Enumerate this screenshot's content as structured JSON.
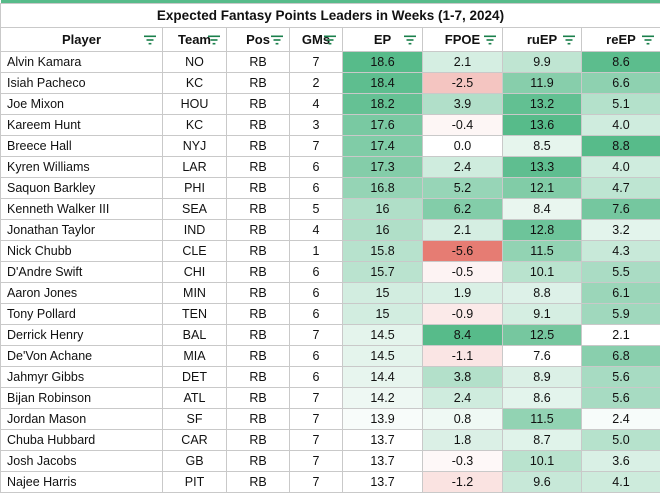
{
  "title": "Expected Fantasy Points Leaders in Weeks (1-7, 2024)",
  "columns": [
    "Player",
    "Team",
    "Pos",
    "GMs",
    "EP",
    "FPOE",
    "ruEP",
    "reEP"
  ],
  "rows": [
    [
      "Alvin Kamara",
      "NO",
      "RB",
      "7",
      "18.6",
      "2.1",
      "9.9",
      "8.6"
    ],
    [
      "Isiah Pacheco",
      "KC",
      "RB",
      "2",
      "18.4",
      "-2.5",
      "11.9",
      "6.6"
    ],
    [
      "Joe Mixon",
      "HOU",
      "RB",
      "4",
      "18.2",
      "3.9",
      "13.2",
      "5.1"
    ],
    [
      "Kareem Hunt",
      "KC",
      "RB",
      "3",
      "17.6",
      "-0.4",
      "13.6",
      "4.0"
    ],
    [
      "Breece Hall",
      "NYJ",
      "RB",
      "7",
      "17.4",
      "0.0",
      "8.5",
      "8.8"
    ],
    [
      "Kyren Williams",
      "LAR",
      "RB",
      "6",
      "17.3",
      "2.4",
      "13.3",
      "4.0"
    ],
    [
      "Saquon Barkley",
      "PHI",
      "RB",
      "6",
      "16.8",
      "5.2",
      "12.1",
      "4.7"
    ],
    [
      "Kenneth Walker III",
      "SEA",
      "RB",
      "5",
      "16",
      "6.2",
      "8.4",
      "7.6"
    ],
    [
      "Jonathan Taylor",
      "IND",
      "RB",
      "4",
      "16",
      "2.1",
      "12.8",
      "3.2"
    ],
    [
      "Nick Chubb",
      "CLE",
      "RB",
      "1",
      "15.8",
      "-5.6",
      "11.5",
      "4.3"
    ],
    [
      "D'Andre Swift",
      "CHI",
      "RB",
      "6",
      "15.7",
      "-0.5",
      "10.1",
      "5.5"
    ],
    [
      "Aaron Jones",
      "MIN",
      "RB",
      "6",
      "15",
      "1.9",
      "8.8",
      "6.1"
    ],
    [
      "Tony Pollard",
      "TEN",
      "RB",
      "6",
      "15",
      "-0.9",
      "9.1",
      "5.9"
    ],
    [
      "Derrick Henry",
      "BAL",
      "RB",
      "7",
      "14.5",
      "8.4",
      "12.5",
      "2.1"
    ],
    [
      "De'Von Achane",
      "MIA",
      "RB",
      "6",
      "14.5",
      "-1.1",
      "7.6",
      "6.8"
    ],
    [
      "Jahmyr Gibbs",
      "DET",
      "RB",
      "6",
      "14.4",
      "3.8",
      "8.9",
      "5.6"
    ],
    [
      "Bijan Robinson",
      "ATL",
      "RB",
      "7",
      "14.2",
      "2.4",
      "8.6",
      "5.6"
    ],
    [
      "Jordan Mason",
      "SF",
      "RB",
      "7",
      "13.9",
      "0.8",
      "11.5",
      "2.4"
    ],
    [
      "Chuba Hubbard",
      "CAR",
      "RB",
      "7",
      "13.7",
      "1.8",
      "8.7",
      "5.0"
    ],
    [
      "Josh Jacobs",
      "GB",
      "RB",
      "7",
      "13.7",
      "-0.3",
      "10.1",
      "3.6"
    ],
    [
      "Najee Harris",
      "PIT",
      "RB",
      "7",
      "13.7",
      "-1.2",
      "9.6",
      "4.1"
    ]
  ],
  "colors": {
    "top_strip": "#57bb8a",
    "filter_icon": "#1a7f4b",
    "green_high": "#57bb8a",
    "white": "#ffffff",
    "red_low": "#e67c73"
  }
}
